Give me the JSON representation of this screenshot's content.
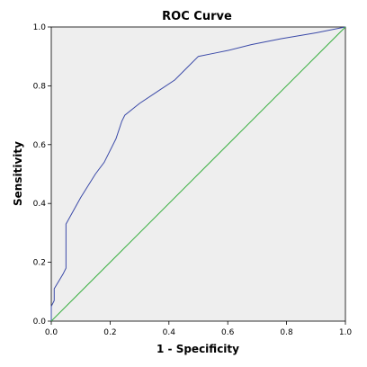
{
  "chart_data": {
    "type": "line",
    "title": "ROC Curve",
    "xlabel": "1 - Specificity",
    "ylabel": "Sensitivity",
    "xlim": [
      0,
      1
    ],
    "ylim": [
      0,
      1
    ],
    "x_ticks": [
      "0.0",
      "0.2",
      "0.4",
      "0.6",
      "0.8",
      "1.0"
    ],
    "y_ticks": [
      "0.0",
      "0.2",
      "0.4",
      "0.6",
      "0.8",
      "1.0"
    ],
    "grid": false,
    "legend": "none",
    "colors": {
      "plot_background": "#eeeeee",
      "roc_curve": "#3b4aa8",
      "reference_line": "#3cb043"
    },
    "series": [
      {
        "points": [
          [
            0.0,
            0.0
          ],
          [
            0.0,
            0.05
          ],
          [
            0.01,
            0.07
          ],
          [
            0.01,
            0.11
          ],
          [
            0.04,
            0.16
          ],
          [
            0.05,
            0.18
          ],
          [
            0.05,
            0.33
          ],
          [
            0.1,
            0.42
          ],
          [
            0.15,
            0.5
          ],
          [
            0.18,
            0.54
          ],
          [
            0.22,
            0.62
          ],
          [
            0.24,
            0.68
          ],
          [
            0.25,
            0.7
          ],
          [
            0.3,
            0.74
          ],
          [
            0.36,
            0.78
          ],
          [
            0.42,
            0.82
          ],
          [
            0.46,
            0.86
          ],
          [
            0.5,
            0.9
          ],
          [
            0.55,
            0.91
          ],
          [
            0.6,
            0.92
          ],
          [
            0.68,
            0.94
          ],
          [
            0.78,
            0.96
          ],
          [
            0.9,
            0.98
          ],
          [
            1.0,
            1.0
          ]
        ]
      },
      {
        "points": [
          [
            0.0,
            0.0
          ],
          [
            1.0,
            1.0
          ]
        ]
      }
    ]
  }
}
